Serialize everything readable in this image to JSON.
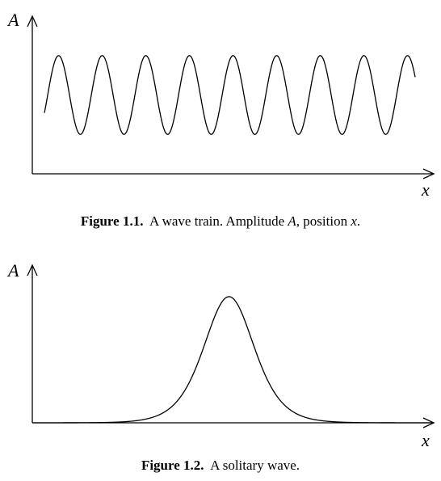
{
  "figures": [
    {
      "y_axis_label": "A",
      "x_axis_label": "x",
      "caption_number": "Figure 1.1.",
      "caption_text_1": "A wave train. Amplitude",
      "caption_var_1": "A",
      "caption_text_2": ", position",
      "caption_var_2": "x",
      "caption_text_3": ".",
      "chart_data": {
        "type": "line",
        "description_curve": "sinusoid",
        "cycles": 8.5,
        "series": [
          {
            "kind": "sine",
            "mean": 0.5,
            "amplitude": 0.25
          }
        ]
      }
    },
    {
      "y_axis_label": "A",
      "x_axis_label": "x",
      "caption_number": "Figure 1.2.",
      "caption_text": "A solitary wave.",
      "chart_data": {
        "type": "line",
        "series": [
          {
            "kind": "sech2",
            "peak": 0.8,
            "center": 0.5
          }
        ]
      }
    }
  ]
}
